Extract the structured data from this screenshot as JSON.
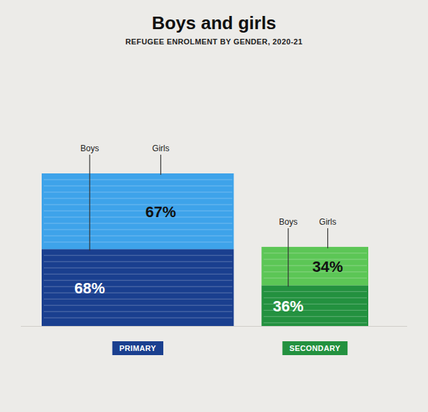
{
  "chart_data": {
    "type": "bar",
    "title": "Boys and girls",
    "subtitle": "REFUGEE ENROLMENT BY GENDER, 2020-21",
    "categories": [
      "PRIMARY",
      "SECONDARY"
    ],
    "series": [
      {
        "name": "Boys",
        "colors": [
          "#1a3f8f",
          "#23913f"
        ],
        "values": [
          68,
          36
        ],
        "value_labels": [
          "68%",
          "36%"
        ]
      },
      {
        "name": "Girls",
        "colors": [
          "#3ea3ea",
          "#5cc656"
        ],
        "values": [
          67,
          34
        ],
        "value_labels": [
          "67%",
          "34%"
        ]
      }
    ],
    "stacked": true,
    "data_labels": true,
    "tick_labels": false,
    "grid": false
  }
}
